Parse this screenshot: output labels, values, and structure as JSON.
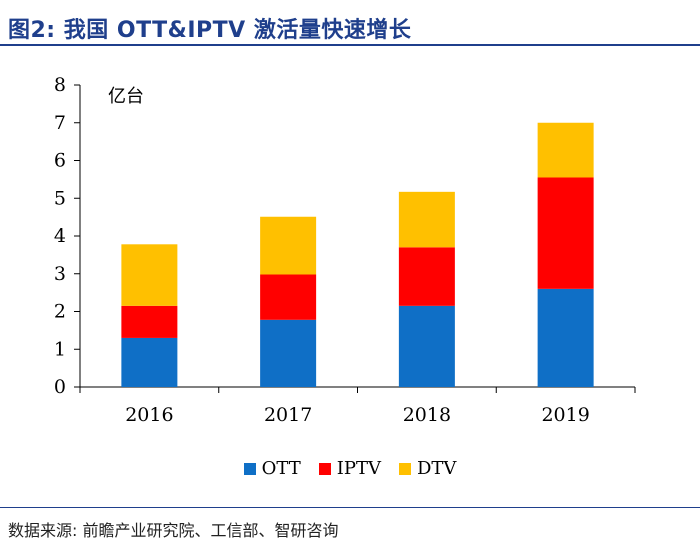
{
  "header": {
    "title": "图2:  我国 OTT&IPTV 激活量快速增长"
  },
  "footer": {
    "source": "数据来源:  前瞻产业研究院、工信部、智研咨询"
  },
  "chart_data": {
    "type": "bar",
    "stacked": true,
    "categories": [
      "2016",
      "2017",
      "2018",
      "2019"
    ],
    "unit_label": "亿台",
    "ylim": [
      0,
      8
    ],
    "yticks": [
      0,
      1,
      2,
      3,
      4,
      5,
      6,
      7,
      8
    ],
    "grid": false,
    "legend_position": "bottom",
    "series": [
      {
        "name": "OTT",
        "color": "#0f6fc6",
        "values": [
          1.3,
          1.78,
          2.15,
          2.6
        ]
      },
      {
        "name": "IPTV",
        "color": "#ff0000",
        "values": [
          0.85,
          1.2,
          1.55,
          2.95
        ]
      },
      {
        "name": "DTV",
        "color": "#ffc000",
        "values": [
          1.63,
          1.53,
          1.47,
          1.45
        ]
      }
    ]
  }
}
